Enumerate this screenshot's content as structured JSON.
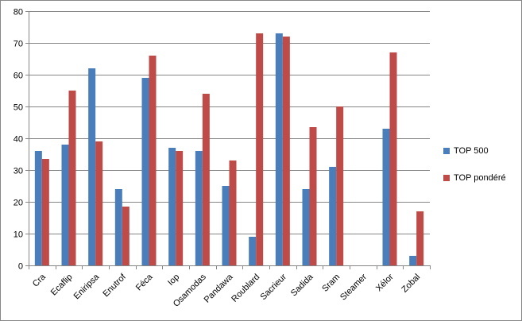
{
  "chart_data": {
    "type": "bar",
    "title": "",
    "xlabel": "",
    "ylabel": "",
    "categories": [
      "Cra",
      "Ecaflip",
      "Eniripsa",
      "Enutrof",
      "Féca",
      "Iop",
      "Osamodas",
      "Pandawa",
      "Roublard",
      "Sacrieur",
      "Sadida",
      "Sram",
      "Steamer",
      "Xélor",
      "Zobal"
    ],
    "series": [
      {
        "name": "TOP 500",
        "color": "#4a7ebb",
        "values": [
          36,
          38,
          62,
          24,
          59,
          37,
          36,
          25,
          9,
          73,
          24,
          31,
          0,
          43,
          3
        ]
      },
      {
        "name": "TOP pondéré",
        "color": "#be4b48",
        "values": [
          33.5,
          55,
          39,
          18.5,
          66,
          36,
          54,
          33,
          73,
          72,
          43.5,
          50,
          0,
          67,
          17
        ]
      }
    ],
    "ylim": [
      0,
      80
    ],
    "yticks": [
      0,
      10,
      20,
      30,
      40,
      50,
      60,
      70,
      80
    ],
    "grid": true,
    "legend_position": "right"
  }
}
